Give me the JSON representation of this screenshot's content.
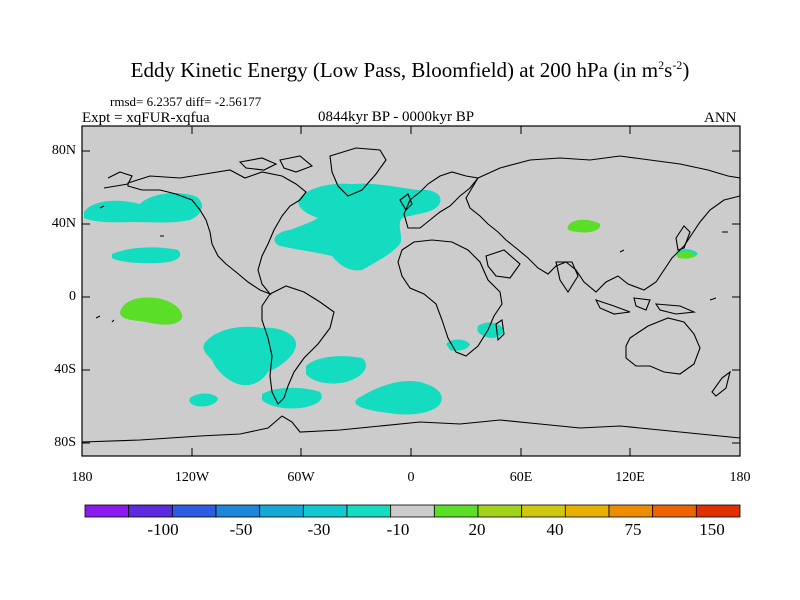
{
  "title": "Eddy Kinetic Energy (Low Pass, Bloomfield) at 200 hPa (in m",
  "title_unit_sup1": "2",
  "title_unit_s": "s",
  "title_unit_sup2": "-2",
  "title_close": ")",
  "rmsd_text": "rmsd= 6.2357 diff= -2.56177",
  "expt_text": "Expt = xqFUR-xqfua",
  "period_text": "0844kyr BP - 0000kyr BP",
  "season_text": "ANN",
  "lat_labels": [
    "80N",
    "40N",
    "0",
    "40S",
    "80S"
  ],
  "lon_labels": [
    "180",
    "120W",
    "60W",
    "0",
    "60E",
    "120E",
    "180"
  ],
  "colorbar": {
    "colors": [
      "#8c1aef",
      "#5a2cde",
      "#2d5ce0",
      "#1e86d8",
      "#16a8d5",
      "#10c8d0",
      "#14dcc0",
      "#cccccc",
      "#5ade28",
      "#a2d21c",
      "#d0c810",
      "#e8b000",
      "#ec8c00",
      "#ec6400",
      "#e03000"
    ],
    "labels": [
      "-100",
      "-50",
      "-30",
      "-10",
      "20",
      "40",
      "75",
      "150"
    ]
  },
  "colors": {
    "land_ocean_background": "#cccccc",
    "negative_anomaly": "#14dcc0",
    "positive_anomaly": "#5ade28",
    "coastline": "#000000"
  }
}
